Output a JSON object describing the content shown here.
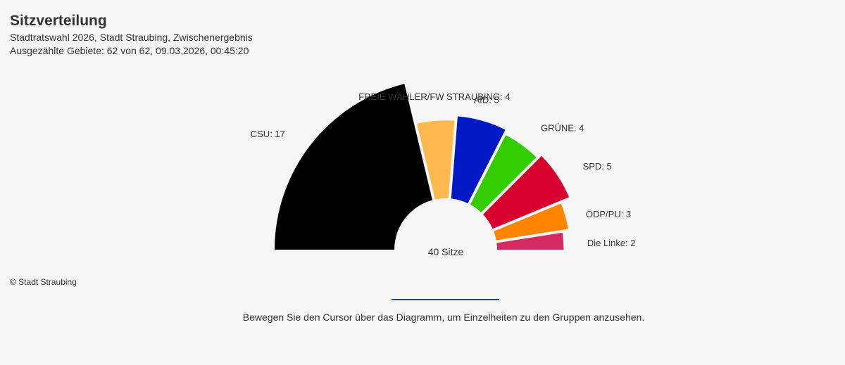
{
  "chart_data": {
    "type": "pie",
    "variant": "parliament-semicircle",
    "title": "Sitzverteilung",
    "subtitle_lines": [
      "Stadtratswahl 2026, Stadt Straubing, Zwischenergebnis",
      "Ausgezählte Gebiete: 62 von 62, 09.03.2026, 00:45:20"
    ],
    "total_label": "40 Sitze",
    "total_seats": 40,
    "series": [
      {
        "name": "CSU",
        "value": 17,
        "color": "#000000",
        "label": "CSU: 17"
      },
      {
        "name": "FREIE WÄHLER/FW STRAUBING",
        "value": 4,
        "color": "#fdb94d",
        "label": "FREIE WÄHLER/FW STRAUBING: 4"
      },
      {
        "name": "AfD",
        "value": 5,
        "color": "#0019c3",
        "label": "AfD: 5"
      },
      {
        "name": "GRÜNE",
        "value": 4,
        "color": "#33cc00",
        "label": "GRÜNE: 4"
      },
      {
        "name": "SPD",
        "value": 5,
        "color": "#d7002f",
        "label": "SPD: 5"
      },
      {
        "name": "ÖDP/PU",
        "value": 3,
        "color": "#ff8400",
        "label": "ÖDP/PU: 3"
      },
      {
        "name": "Die Linke",
        "value": 2,
        "color": "#d42a62",
        "label": "Die Linke: 2"
      }
    ]
  },
  "credit": "© Stadt Straubing",
  "hint": "Bewegen Sie den Cursor über das Diagramm, um Einzelheiten zu den Gruppen anzusehen."
}
